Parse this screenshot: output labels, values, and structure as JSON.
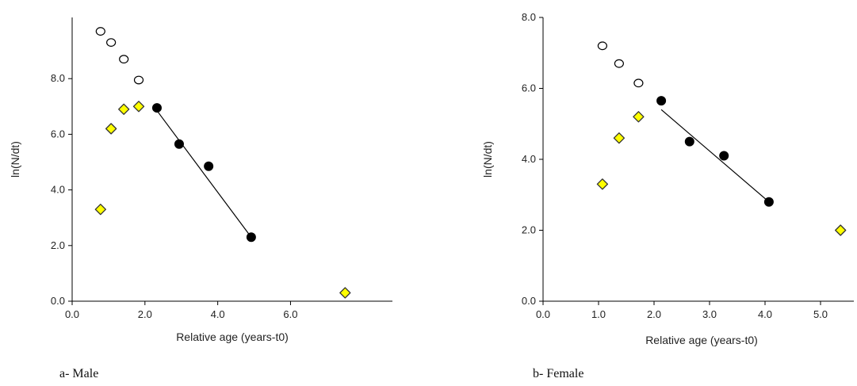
{
  "chart_data": [
    {
      "type": "scatter",
      "caption": "a- Male",
      "xlabel": "Relative age (years-t0)",
      "ylabel": "ln(N/dt)",
      "xlim": [
        0,
        8.8
      ],
      "ylim": [
        0,
        10.2
      ],
      "xticks": [
        0,
        2,
        4,
        6
      ],
      "xtick_labels": [
        "0.0",
        "2.0",
        "4.0",
        "6.0"
      ],
      "yticks": [
        0,
        2,
        4,
        6,
        8
      ],
      "ytick_labels": [
        "0.0",
        "2.0",
        "4.0",
        "6.0",
        "8.0"
      ],
      "grid": false,
      "series": [
        {
          "marker": "open-circle",
          "color": "#ffffff",
          "points": [
            [
              0.78,
              9.7
            ],
            [
              1.07,
              9.3
            ],
            [
              1.42,
              8.7
            ],
            [
              1.83,
              7.95
            ]
          ]
        },
        {
          "marker": "yellow-diamond",
          "color": "#ffff00",
          "points": [
            [
              0.78,
              3.3
            ],
            [
              1.07,
              6.2
            ],
            [
              1.42,
              6.9
            ],
            [
              1.83,
              7.0
            ],
            [
              7.5,
              0.3
            ]
          ]
        },
        {
          "marker": "black-dot",
          "color": "#000000",
          "points": [
            [
              2.33,
              6.95
            ],
            [
              2.94,
              5.65
            ],
            [
              3.75,
              4.85
            ],
            [
              4.92,
              2.3
            ]
          ]
        }
      ],
      "fit_line": [
        [
          2.33,
          6.85
        ],
        [
          4.92,
          2.3
        ]
      ]
    },
    {
      "type": "scatter",
      "caption": "b- Female",
      "xlabel": "Relative age (years-t0)",
      "ylabel": "ln(N/dt)",
      "xlim": [
        0,
        5.6
      ],
      "ylim": [
        0,
        8.0
      ],
      "xticks": [
        0,
        1,
        2,
        3,
        4,
        5
      ],
      "xtick_labels": [
        "0.0",
        "1.0",
        "2.0",
        "3.0",
        "4.0",
        "5.0"
      ],
      "yticks": [
        0,
        2,
        4,
        6,
        8
      ],
      "ytick_labels": [
        "0.0",
        "2.0",
        "4.0",
        "6.0",
        "8.0"
      ],
      "grid": false,
      "series": [
        {
          "marker": "open-circle",
          "color": "#ffffff",
          "points": [
            [
              1.07,
              7.2
            ],
            [
              1.37,
              6.7
            ],
            [
              1.72,
              6.15
            ]
          ]
        },
        {
          "marker": "yellow-diamond",
          "color": "#ffff00",
          "points": [
            [
              1.07,
              3.3
            ],
            [
              1.37,
              4.6
            ],
            [
              1.72,
              5.2
            ],
            [
              5.36,
              2.0
            ]
          ]
        },
        {
          "marker": "black-dot",
          "color": "#000000",
          "points": [
            [
              2.13,
              5.65
            ],
            [
              2.64,
              4.5
            ],
            [
              3.26,
              4.1
            ],
            [
              4.07,
              2.8
            ]
          ]
        }
      ],
      "fit_line": [
        [
          2.13,
          5.4
        ],
        [
          4.07,
          2.8
        ]
      ]
    }
  ]
}
